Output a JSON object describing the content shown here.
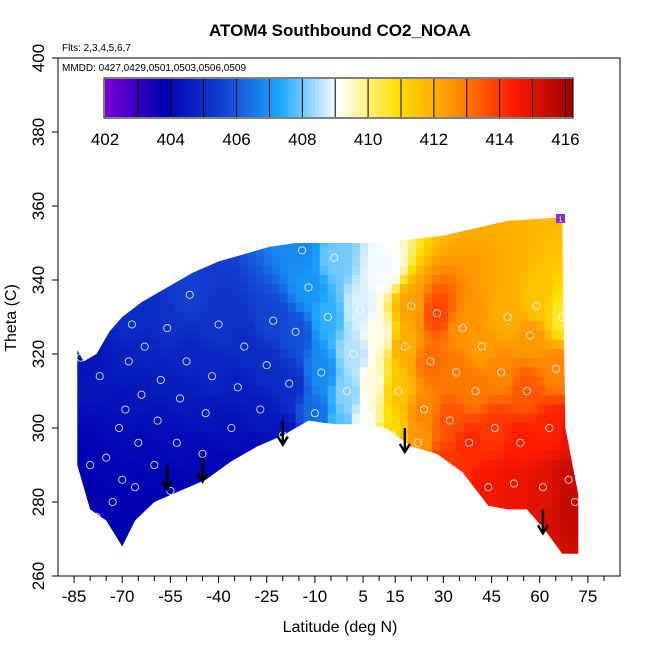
{
  "chart_data": {
    "type": "heatmap",
    "title": "ATOM4 Southbound CO2_NOAA",
    "subtitle_flights": "Flts: 2,3,4,5,6,7",
    "subtitle_dates": "MMDD: 0427,0429,0501,0503,0506,0509",
    "xlabel": "Latitude (deg N)",
    "ylabel": "Theta (C)",
    "xlim": [
      -90,
      85
    ],
    "ylim": [
      260,
      400
    ],
    "x_tick_labels": [
      "-85",
      "-70",
      "-55",
      "-40",
      "-25",
      "-10",
      "5",
      "15",
      "30",
      "45",
      "60",
      "75"
    ],
    "x_tick_values": [
      -85,
      -70,
      -55,
      -40,
      -25,
      -10,
      5,
      15,
      30,
      45,
      60,
      75
    ],
    "y_tick_labels": [
      "260",
      "280",
      "300",
      "320",
      "340",
      "360",
      "380",
      "400"
    ],
    "y_tick_values": [
      260,
      280,
      300,
      320,
      340,
      360,
      380,
      400
    ],
    "colorbar": {
      "label_values": [
        "402",
        "404",
        "406",
        "408",
        "410",
        "412",
        "414",
        "416"
      ],
      "range": [
        402,
        416.2
      ],
      "colors": [
        "#7a00d6",
        "#0000b0",
        "#1240d0",
        "#1aa8ff",
        "#ffffff",
        "#ffe000",
        "#ff9000",
        "#ff1a00",
        "#a00000"
      ]
    },
    "flag_label": "1",
    "outline": [
      [
        -84,
        321
      ],
      [
        -82,
        318
      ],
      [
        -78,
        320
      ],
      [
        -74,
        326
      ],
      [
        -70,
        330
      ],
      [
        -64,
        334
      ],
      [
        -56,
        338
      ],
      [
        -48,
        342
      ],
      [
        -40,
        345
      ],
      [
        -32,
        347
      ],
      [
        -24,
        349
      ],
      [
        -16,
        350
      ],
      [
        -8,
        350
      ],
      [
        0,
        350
      ],
      [
        10,
        350
      ],
      [
        20,
        351
      ],
      [
        30,
        352
      ],
      [
        40,
        354
      ],
      [
        50,
        356
      ],
      [
        60,
        356.5
      ],
      [
        67,
        357
      ],
      [
        68,
        300
      ],
      [
        72,
        282
      ],
      [
        72,
        266
      ],
      [
        67,
        266
      ],
      [
        62,
        272
      ],
      [
        56,
        278
      ],
      [
        50,
        278
      ],
      [
        44,
        279
      ],
      [
        36,
        288
      ],
      [
        28,
        293
      ],
      [
        20,
        295
      ],
      [
        12,
        300
      ],
      [
        4,
        301
      ],
      [
        -4,
        301
      ],
      [
        -12,
        302
      ],
      [
        -20,
        298
      ],
      [
        -28,
        295
      ],
      [
        -36,
        291
      ],
      [
        -44,
        286
      ],
      [
        -52,
        283
      ],
      [
        -60,
        280
      ],
      [
        -66,
        275
      ],
      [
        -70,
        268
      ],
      [
        -75,
        275
      ],
      [
        -80,
        278
      ],
      [
        -84,
        290
      ]
    ],
    "arrows_latitude": [
      -56,
      -45,
      -20,
      18,
      61
    ],
    "arrows_theta_top": [
      290,
      292,
      302,
      300,
      278
    ],
    "observations": [
      [
        -83,
        319,
        404.3
      ],
      [
        -80,
        290,
        403.8
      ],
      [
        -78,
        276,
        403.6
      ],
      [
        -77,
        314,
        404.4
      ],
      [
        -75,
        292,
        403.9
      ],
      [
        -73,
        280,
        403.8
      ],
      [
        -71,
        300,
        404.1
      ],
      [
        -70,
        286,
        403.9
      ],
      [
        -69,
        305,
        404.3
      ],
      [
        -68,
        318,
        404.6
      ],
      [
        -67,
        328,
        405.0
      ],
      [
        -66,
        284,
        403.8
      ],
      [
        -65,
        296,
        404.0
      ],
      [
        -64,
        309,
        404.4
      ],
      [
        -63,
        322,
        404.8
      ],
      [
        -61,
        277,
        403.7
      ],
      [
        -60,
        290,
        403.9
      ],
      [
        -59,
        302,
        404.2
      ],
      [
        -58,
        313,
        404.6
      ],
      [
        -56,
        327,
        405.1
      ],
      [
        -55,
        283,
        403.8
      ],
      [
        -53,
        296,
        404.1
      ],
      [
        -52,
        308,
        404.5
      ],
      [
        -50,
        318,
        404.8
      ],
      [
        -49,
        336,
        405.5
      ],
      [
        -47,
        281,
        403.8
      ],
      [
        -45,
        293,
        404.0
      ],
      [
        -44,
        304,
        404.4
      ],
      [
        -42,
        314,
        404.8
      ],
      [
        -40,
        328,
        405.2
      ],
      [
        -38,
        288,
        403.9
      ],
      [
        -36,
        300,
        404.2
      ],
      [
        -34,
        311,
        404.6
      ],
      [
        -32,
        322,
        405.0
      ],
      [
        -29,
        293,
        404.0
      ],
      [
        -27,
        305,
        404.5
      ],
      [
        -25,
        317,
        405.0
      ],
      [
        -23,
        329,
        405.6
      ],
      [
        -20,
        298,
        404.3
      ],
      [
        -18,
        312,
        405.0
      ],
      [
        -16,
        326,
        405.8
      ],
      [
        -14,
        348,
        406.8
      ],
      [
        -12,
        338,
        407.0
      ],
      [
        -10,
        304,
        406.3
      ],
      [
        -8,
        315,
        406.8
      ],
      [
        -6,
        330,
        407.5
      ],
      [
        -4,
        346,
        408.0
      ],
      [
        -2,
        300,
        407.8
      ],
      [
        0,
        310,
        408.2
      ],
      [
        2,
        320,
        408.5
      ],
      [
        4,
        332,
        408.8
      ],
      [
        6,
        301,
        409.2
      ],
      [
        8,
        312,
        409.4
      ],
      [
        10,
        325,
        409.3
      ],
      [
        12,
        343,
        409.0
      ],
      [
        14,
        298,
        411.0
      ],
      [
        16,
        310,
        411.5
      ],
      [
        18,
        322,
        412.0
      ],
      [
        20,
        333,
        412.3
      ],
      [
        22,
        296,
        412.5
      ],
      [
        24,
        305,
        412.8
      ],
      [
        26,
        318,
        413.2
      ],
      [
        28,
        331,
        413.8
      ],
      [
        30,
        290,
        414.0
      ],
      [
        32,
        302,
        413.6
      ],
      [
        34,
        315,
        413.0
      ],
      [
        36,
        327,
        412.6
      ],
      [
        38,
        296,
        414.2
      ],
      [
        40,
        310,
        413.0
      ],
      [
        42,
        322,
        412.4
      ],
      [
        44,
        284,
        414.6
      ],
      [
        46,
        300,
        414.0
      ],
      [
        48,
        315,
        412.8
      ],
      [
        50,
        330,
        412.0
      ],
      [
        52,
        285,
        414.8
      ],
      [
        54,
        296,
        414.4
      ],
      [
        56,
        310,
        413.5
      ],
      [
        57,
        325,
        412.5
      ],
      [
        59,
        333,
        411.5
      ],
      [
        61,
        284,
        415.0
      ],
      [
        63,
        300,
        414.3
      ],
      [
        65,
        316,
        412.8
      ],
      [
        67,
        330,
        410.5
      ],
      [
        69,
        286,
        415.5
      ],
      [
        70,
        298,
        414.8
      ],
      [
        71,
        280,
        415.6
      ]
    ]
  }
}
